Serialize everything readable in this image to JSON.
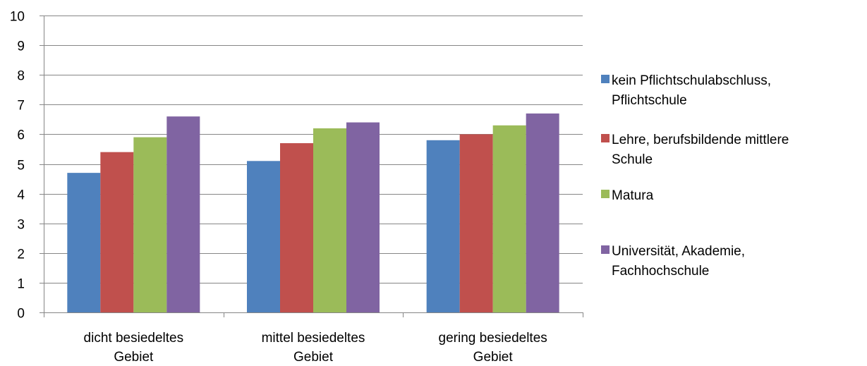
{
  "chart_data": {
    "type": "bar",
    "categories": [
      [
        "dicht besiedeltes",
        "Gebiet"
      ],
      [
        "mittel besiedeltes",
        "Gebiet"
      ],
      [
        "gering besiedeltes",
        "Gebiet"
      ]
    ],
    "series": [
      {
        "name": "kein Pflichtschulabschluss, Pflichtschule",
        "legend_lines": [
          "kein Pflichtschulabschluss,",
          "Pflichtschule"
        ],
        "color": "#4f81bd",
        "values": [
          4.7,
          5.1,
          5.8
        ]
      },
      {
        "name": "Lehre, berufsbildende mittlere Schule",
        "legend_lines": [
          "Lehre, berufsbildende mittlere",
          "Schule"
        ],
        "color": "#c0504d",
        "values": [
          5.4,
          5.7,
          6.0
        ]
      },
      {
        "name": "Matura",
        "legend_lines": [
          "Matura"
        ],
        "color": "#9bbb59",
        "values": [
          5.9,
          6.2,
          6.3
        ]
      },
      {
        "name": "Universität, Akademie, Fachhochschule",
        "legend_lines": [
          "Universität, Akademie,",
          "Fachhochschule"
        ],
        "color": "#8064a2",
        "values": [
          6.6,
          6.4,
          6.7
        ]
      }
    ],
    "ylim": [
      0,
      10
    ],
    "yticks": [
      "0",
      "1",
      "2",
      "3",
      "4",
      "5",
      "6",
      "7",
      "8",
      "9",
      "10"
    ],
    "grid": true,
    "gridColor": "#868686",
    "legendPlacement": "right",
    "title": "",
    "xlabel": "",
    "ylabel": ""
  }
}
